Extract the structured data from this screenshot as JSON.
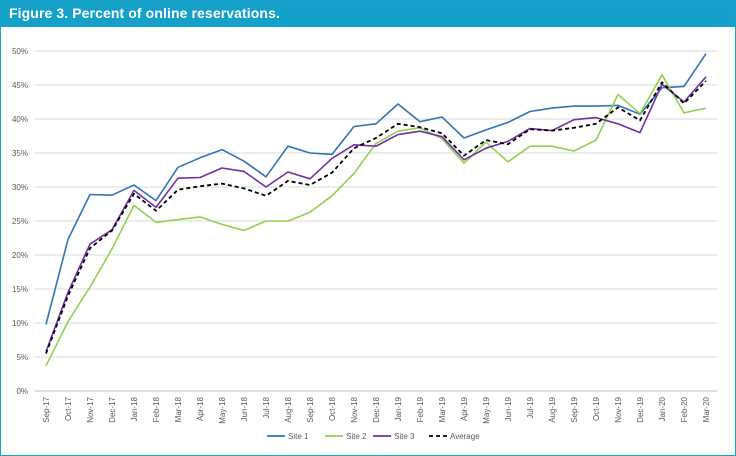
{
  "figure": {
    "title": "Figure 3. Percent of online reservations."
  },
  "chart_data": {
    "type": "line",
    "categories": [
      "Sep-17",
      "Oct-17",
      "Nov-17",
      "Dec-17",
      "Jan-18",
      "Feb-18",
      "Mar-18",
      "Apr-18",
      "May-18",
      "Jun-18",
      "Jul-18",
      "Aug-18",
      "Sep-18",
      "Oct-18",
      "Nov-18",
      "Dec-18",
      "Jan-19",
      "Feb-19",
      "Mar-19",
      "Apr-19",
      "May-19",
      "Jun-19",
      "Jul-19",
      "Aug-19",
      "Sep-19",
      "Oct-19",
      "Nov-19",
      "Dec-19",
      "Jan-20",
      "Feb-20",
      "Mar-20"
    ],
    "y_ticks": [
      0,
      5,
      10,
      15,
      20,
      25,
      30,
      35,
      40,
      45,
      50
    ],
    "y_tick_labels": [
      "0%",
      "5%",
      "10%",
      "15%",
      "20%",
      "25%",
      "30%",
      "35%",
      "40%",
      "45%",
      "50%"
    ],
    "ylim": [
      0,
      50
    ],
    "y_unit": "%",
    "grid": "horizontal",
    "legend_position": "bottom",
    "series": [
      {
        "name": "Site 1",
        "color": "#2e75b6",
        "dash": "solid",
        "values": [
          9.8,
          22.3,
          28.9,
          28.8,
          30.3,
          28.0,
          32.9,
          34.3,
          35.5,
          33.8,
          31.5,
          36.0,
          35.0,
          34.8,
          38.9,
          39.3,
          42.2,
          39.6,
          40.3,
          37.2,
          38.4,
          39.5,
          41.1,
          41.6,
          41.9,
          41.9,
          42.0,
          40.7,
          44.6,
          44.8,
          49.6
        ]
      },
      {
        "name": "Site 2",
        "color": "#92d050",
        "dash": "solid",
        "values": [
          3.7,
          10.2,
          15.3,
          20.9,
          27.3,
          24.8,
          25.2,
          25.6,
          24.5,
          23.6,
          25.0,
          25.0,
          26.3,
          28.7,
          32.0,
          36.4,
          38.2,
          38.7,
          37.1,
          33.5,
          36.6,
          33.7,
          36.0,
          36.0,
          35.3,
          36.9,
          43.6,
          40.8,
          46.5,
          40.9,
          41.6
        ]
      },
      {
        "name": "Site 3",
        "color": "#7030a0",
        "dash": "solid",
        "values": [
          5.8,
          14.5,
          21.6,
          23.7,
          29.5,
          27.0,
          31.3,
          31.4,
          32.8,
          32.3,
          30.0,
          32.2,
          31.2,
          34.2,
          36.2,
          36.0,
          37.7,
          38.2,
          37.4,
          34.0,
          35.7,
          36.7,
          38.6,
          38.3,
          39.9,
          40.2,
          39.3,
          38.0,
          45.1,
          42.5,
          46.2
        ]
      },
      {
        "name": "Average",
        "color": "#000000",
        "dash": "dashed",
        "values": [
          5.5,
          14.0,
          21.0,
          23.6,
          29.0,
          26.5,
          29.6,
          30.1,
          30.5,
          29.8,
          28.7,
          30.9,
          30.3,
          32.1,
          35.7,
          37.2,
          39.3,
          38.8,
          37.9,
          34.6,
          36.9,
          36.3,
          38.5,
          38.3,
          38.7,
          39.3,
          41.7,
          39.8,
          45.4,
          42.3,
          45.6
        ]
      }
    ]
  }
}
